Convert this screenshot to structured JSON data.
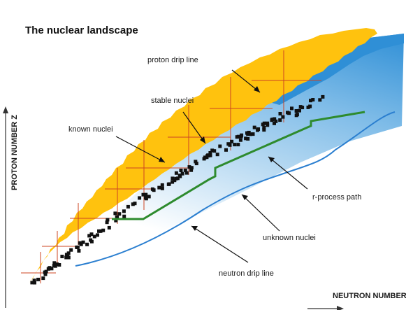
{
  "title": "The nuclear landscape",
  "axes": {
    "y_label": "PROTON NUMBER Z",
    "x_label": "NEUTRON NUMBER N"
  },
  "labels": {
    "proton_drip_line": "proton drip line",
    "stable_nuclei": "stable nuclei",
    "known_nuclei": "known nuclei",
    "r_process_path": "r-process path",
    "unknown_nuclei": "unknown nuclei",
    "neutron_drip_line": "neutron drip line"
  },
  "colors": {
    "background": "#ffffff",
    "unknown_region_light": "#d7ebf8",
    "unknown_region_dark": "#2f8fd6",
    "known_nuclei": "#ffc20e",
    "stable_nuclei": "#111111",
    "r_process_path": "#2e8b2e",
    "neutron_drip_line": "#2b7fd0",
    "magic_number_lines": "#cc4422"
  }
}
